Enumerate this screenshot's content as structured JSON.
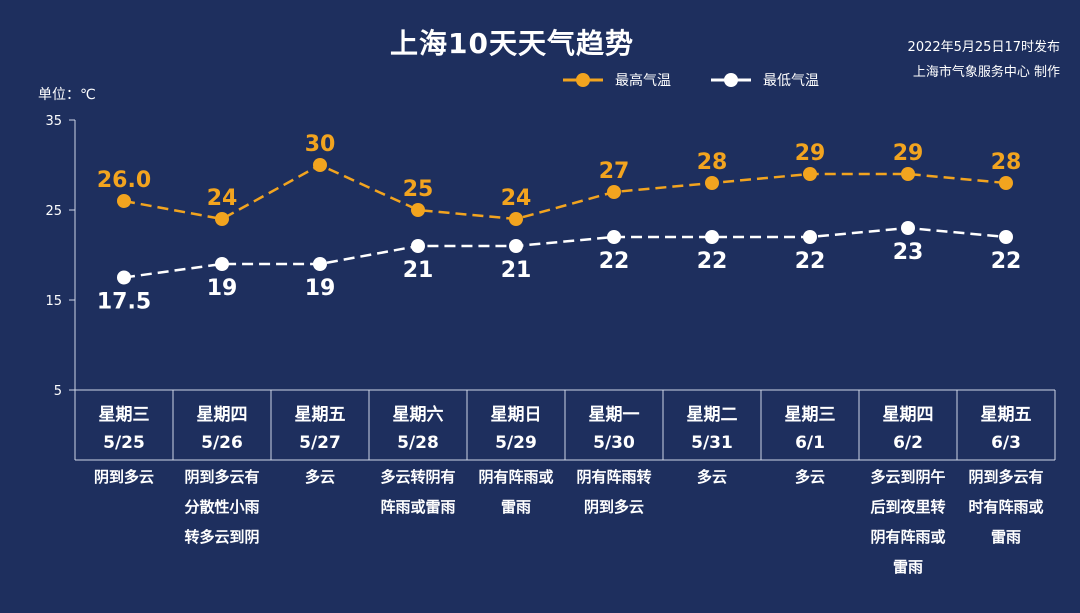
{
  "header": {
    "title": "上海10天天气趋势",
    "source_line1": "2022年5月25日17时发布",
    "source_line2": "上海市气象服务中心 制作"
  },
  "chart_data": {
    "type": "line",
    "ylabel": "单位：℃",
    "yticks": [
      35,
      25,
      15,
      5
    ],
    "ylim": [
      5,
      35
    ],
    "grid": false,
    "legend_position": "top-center",
    "x": [
      {
        "weekday": "星期三",
        "date": "5/25",
        "weather": [
          "阴到多云"
        ]
      },
      {
        "weekday": "星期四",
        "date": "5/26",
        "weather": [
          "阴到多云有",
          "分散性小雨",
          "转多云到阴"
        ]
      },
      {
        "weekday": "星期五",
        "date": "5/27",
        "weather": [
          "多云"
        ]
      },
      {
        "weekday": "星期六",
        "date": "5/28",
        "weather": [
          "多云转阴有",
          "阵雨或雷雨"
        ]
      },
      {
        "weekday": "星期日",
        "date": "5/29",
        "weather": [
          "阴有阵雨或",
          "雷雨"
        ]
      },
      {
        "weekday": "星期一",
        "date": "5/30",
        "weather": [
          "阴有阵雨转",
          "阴到多云"
        ]
      },
      {
        "weekday": "星期二",
        "date": "5/31",
        "weather": [
          "多云"
        ]
      },
      {
        "weekday": "星期三",
        "date": "6/1",
        "weather": [
          "多云"
        ]
      },
      {
        "weekday": "星期四",
        "date": "6/2",
        "weather": [
          "多云到阴午",
          "后到夜里转",
          "阴有阵雨或",
          "雷雨"
        ]
      },
      {
        "weekday": "星期五",
        "date": "6/3",
        "weather": [
          "阴到多云有",
          "时有阵雨或",
          "雷雨"
        ]
      }
    ],
    "series": [
      {
        "name": "最高气温",
        "color": "#f2a41f",
        "values": [
          26.0,
          24,
          30,
          25,
          24,
          27,
          28,
          29,
          29,
          28
        ],
        "labels": [
          "26.0",
          "24",
          "30",
          "25",
          "24",
          "27",
          "28",
          "29",
          "29",
          "28"
        ]
      },
      {
        "name": "最低气温",
        "color": "#ffffff",
        "values": [
          17.5,
          19,
          19,
          21,
          21,
          22,
          22,
          22,
          23,
          22
        ],
        "labels": [
          "17.5",
          "19",
          "19",
          "21",
          "21",
          "22",
          "22",
          "22",
          "23",
          "22"
        ]
      }
    ]
  }
}
